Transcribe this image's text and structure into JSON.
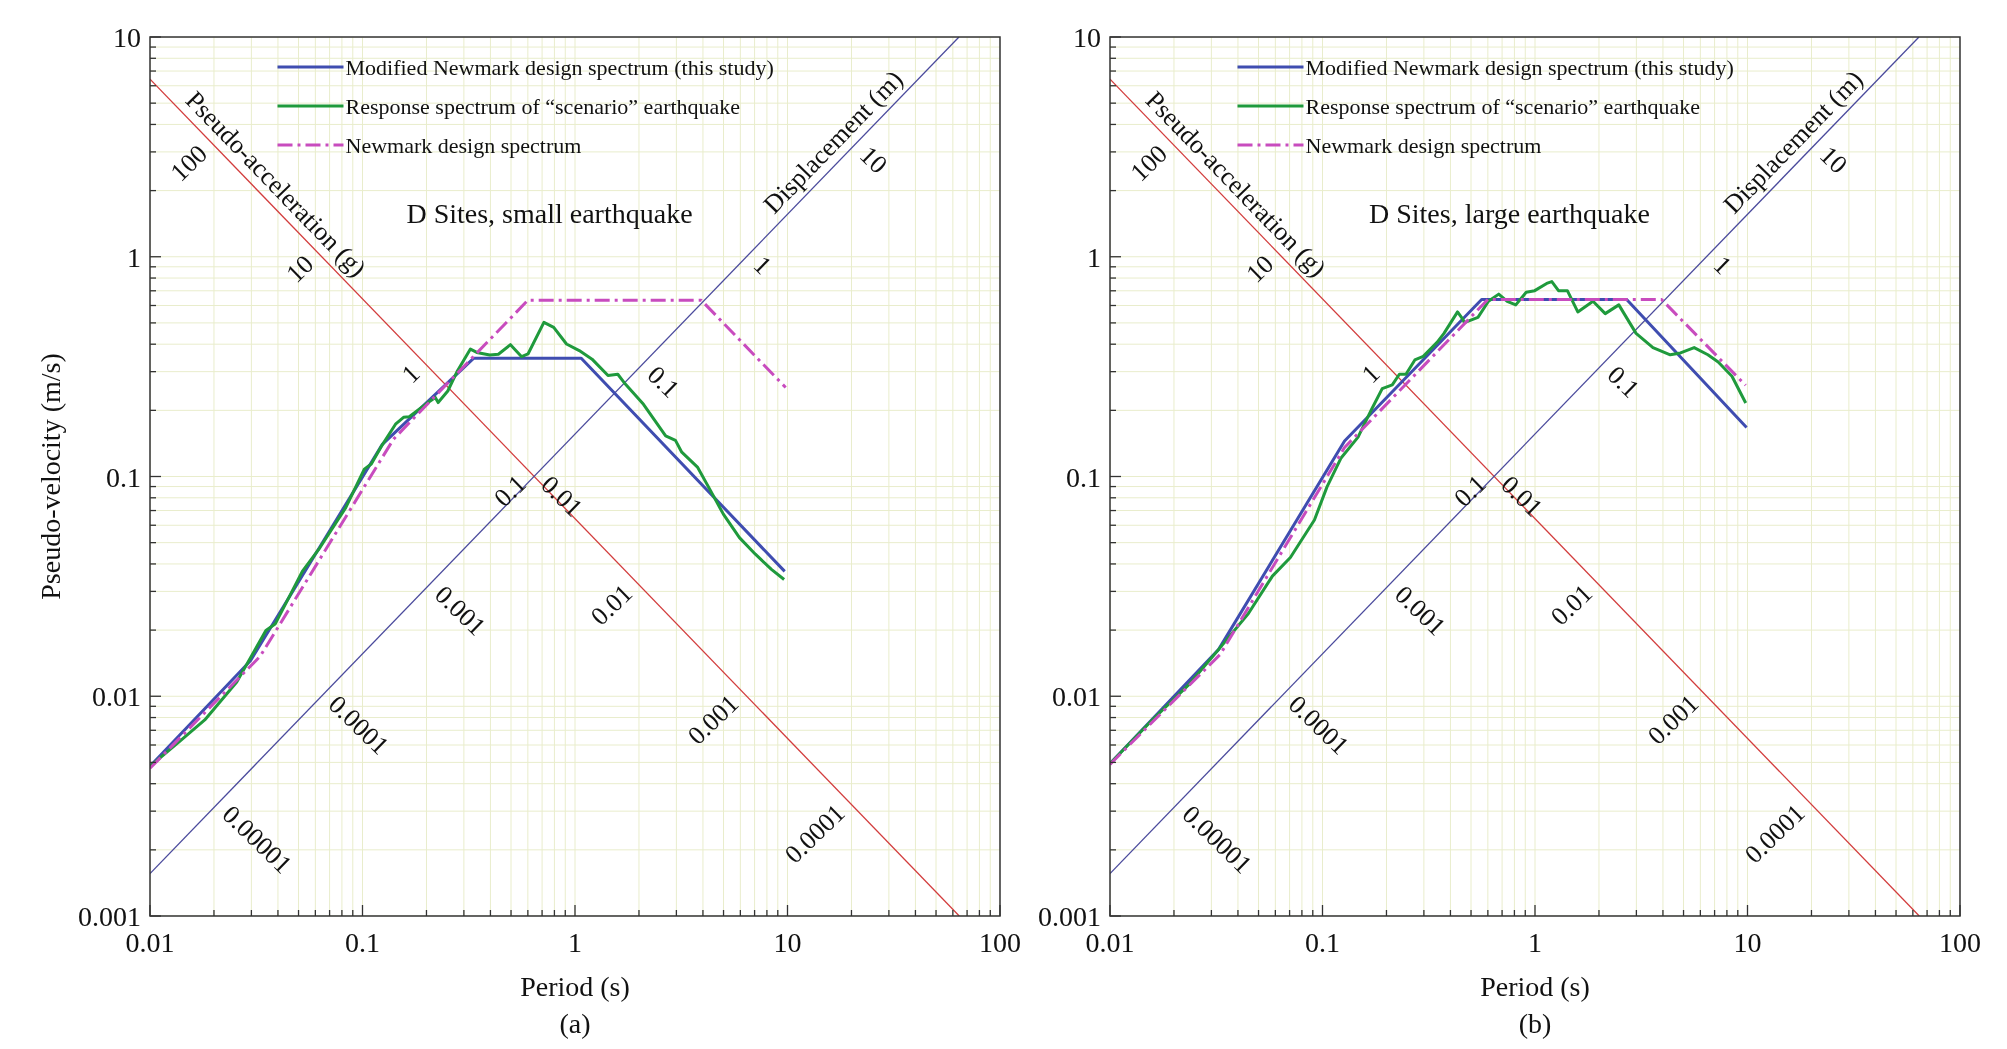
{
  "chart_data": [
    {
      "type": "line",
      "title": "D Sites, small earthquake",
      "xlabel": "Period (s)",
      "ylabel": "Pseudo-velocity (m/s)",
      "log": "xy",
      "grid": true,
      "legend": "top",
      "xlim": [
        0.01,
        100
      ],
      "ylim": [
        0.001,
        10
      ],
      "xticks": [
        0.01,
        {
          "value": 0.02,
          "label": null
        },
        {
          "value": 0.03,
          "label": null
        },
        {
          "value": 0.04,
          "label": null
        },
        {
          "value": 0.05,
          "label": null
        },
        {
          "value": 0.06,
          "label": null
        },
        {
          "value": 0.07,
          "label": null
        },
        {
          "value": 0.08,
          "label": null
        },
        {
          "value": 0.09,
          "label": null
        },
        0.1,
        {
          "value": 0.2,
          "label": null
        },
        {
          "value": 0.3,
          "label": null
        },
        {
          "value": 0.4,
          "label": null
        },
        {
          "value": 0.5,
          "label": null
        },
        {
          "value": 0.6,
          "label": null
        },
        {
          "value": 0.7,
          "label": null
        },
        {
          "value": 0.8,
          "label": null
        },
        {
          "value": 0.9,
          "label": null
        },
        1,
        {
          "value": 2,
          "label": null
        },
        {
          "value": 3,
          "label": null
        },
        {
          "value": 4,
          "label": null
        },
        {
          "value": 5,
          "label": null
        },
        {
          "value": 6,
          "label": null
        },
        {
          "value": 7,
          "label": null
        },
        {
          "value": 8,
          "label": null
        },
        {
          "value": 9,
          "label": null
        },
        10,
        {
          "value": 20,
          "label": null
        },
        {
          "value": 30,
          "label": null
        },
        {
          "value": 40,
          "label": null
        },
        {
          "value": 50,
          "label": null
        },
        {
          "value": 60,
          "label": null
        },
        {
          "value": 70,
          "label": null
        },
        {
          "value": 80,
          "label": null
        },
        {
          "value": 90,
          "label": null
        },
        100
      ],
      "yticks": [
        0.001,
        {
          "value": 0.002,
          "label": null
        },
        {
          "value": 0.003,
          "label": null
        },
        {
          "value": 0.004,
          "label": null
        },
        {
          "value": 0.005,
          "label": null
        },
        {
          "value": 0.006,
          "label": null
        },
        {
          "value": 0.007,
          "label": null
        },
        {
          "value": 0.008,
          "label": null
        },
        {
          "value": 0.009,
          "label": null
        },
        0.01,
        {
          "value": 0.02,
          "label": null
        },
        {
          "value": 0.03,
          "label": null
        },
        {
          "value": 0.04,
          "label": null
        },
        {
          "value": 0.05,
          "label": null
        },
        {
          "value": 0.06,
          "label": null
        },
        {
          "value": 0.07,
          "label": null
        },
        {
          "value": 0.08,
          "label": null
        },
        {
          "value": 0.09,
          "label": null
        },
        0.1,
        {
          "value": 0.2,
          "label": null
        },
        {
          "value": 0.3,
          "label": null
        },
        {
          "value": 0.4,
          "label": null
        },
        {
          "value": 0.5,
          "label": null
        },
        {
          "value": 0.6,
          "label": null
        },
        {
          "value": 0.7,
          "label": null
        },
        {
          "value": 0.8,
          "label": null
        },
        {
          "value": 0.9,
          "label": null
        },
        1,
        {
          "value": 2,
          "label": null
        },
        {
          "value": 3,
          "label": null
        },
        {
          "value": 4,
          "label": null
        },
        {
          "value": 5,
          "label": null
        },
        {
          "value": 6,
          "label": null
        },
        {
          "value": 7,
          "label": null
        },
        {
          "value": 8,
          "label": null
        },
        {
          "value": 9,
          "label": null
        },
        10
      ],
      "series": [
        {
          "color": "#d23c3c",
          "x": [
            0.01,
            64.3
          ],
          "values": [
            6.43,
            0.001
          ]
        },
        {
          "color": "#4a4a9c",
          "x": [
            0.01,
            64.1
          ],
          "values": [
            0.00156,
            10
          ]
        },
        {
          "name": "Modified Newmark design spectrum (this study)",
          "color": "#3f4db0",
          "x": [
            0.01,
            0.0297,
            0.124,
            0.333,
            1.07,
            9.7
          ],
          "values": [
            0.0048,
            0.0145,
            0.14,
            0.345,
            0.345,
            0.037
          ]
        },
        {
          "name": "Response spectrum of “scenario” earthquake",
          "color": "#1f9a3c",
          "x": [
            0.01,
            0.0137,
            0.0181,
            0.0256,
            0.0351,
            0.0388,
            0.0521,
            0.0631,
            0.0834,
            0.102,
            0.11,
            0.122,
            0.143,
            0.156,
            0.166,
            0.198,
            0.22,
            0.227,
            0.252,
            0.28,
            0.322,
            0.345,
            0.397,
            0.436,
            0.497,
            0.561,
            0.601,
            0.714,
            0.794,
            0.912,
            1.047,
            1.203,
            1.43,
            1.59,
            1.7,
            2.1,
            2.67,
            2.97,
            3.18,
            3.78,
            4.35,
            4.99,
            5.94,
            7.06,
            8.4,
            9.64
          ],
          "values": [
            0.0048,
            0.0062,
            0.0078,
            0.0116,
            0.0199,
            0.0213,
            0.037,
            0.0475,
            0.0722,
            0.108,
            0.114,
            0.136,
            0.173,
            0.186,
            0.187,
            0.213,
            0.229,
            0.217,
            0.245,
            0.303,
            0.38,
            0.367,
            0.357,
            0.36,
            0.398,
            0.351,
            0.361,
            0.503,
            0.477,
            0.401,
            0.374,
            0.342,
            0.288,
            0.292,
            0.268,
            0.213,
            0.153,
            0.146,
            0.129,
            0.11,
            0.086,
            0.0674,
            0.0527,
            0.0443,
            0.0378,
            0.034
          ]
        },
        {
          "name": "Newmark design spectrum",
          "color": "#c84cbe",
          "line_style": "dashdot",
          "x": [
            0.01,
            0.033,
            0.14,
            0.6,
            3.93,
            9.8
          ],
          "values": [
            0.0047,
            0.0152,
            0.148,
            0.634,
            0.634,
            0.254
          ]
        }
      ],
      "annotations": [
        "Pseudo-acceleration (g)",
        "Displacement (m)",
        {
          "text": "100",
          "x": 0.0203,
          "y": 3.17
        },
        {
          "text": "10",
          "x": 0.0642,
          "y": 1.0
        },
        {
          "text": "1",
          "x": 0.203,
          "y": 0.317
        },
        {
          "text": "0.1",
          "x": 0.642,
          "y": 0.1
        },
        {
          "text": "0.01",
          "x": 2.03,
          "y": 0.0317
        },
        {
          "text": "0.001",
          "x": 6.42,
          "y": 0.01
        },
        {
          "text": "0.0001",
          "x": 20.3,
          "y": 0.00317
        },
        {
          "text": "10",
          "x": 20.07,
          "y": 3.13
        },
        {
          "text": "1",
          "x": 6.35,
          "y": 0.99
        },
        {
          "text": "0.1",
          "x": 2.007,
          "y": 0.313
        },
        {
          "text": "0.01",
          "x": 0.635,
          "y": 0.099
        },
        {
          "text": "0.001",
          "x": 0.2007,
          "y": 0.0313
        },
        {
          "text": "0.0001",
          "x": 0.0635,
          "y": 0.0099
        },
        {
          "text": "0.00001",
          "x": 0.02007,
          "y": 0.00313
        },
        "(a)"
      ]
    },
    {
      "type": "line",
      "title": "D Sites, large earthquake",
      "xlabel": "Period (s)",
      "log": "xy",
      "grid": true,
      "legend": "top",
      "xlim": [
        0.01,
        100
      ],
      "ylim": [
        0.001,
        10
      ],
      "xticks": [
        0.01,
        {
          "value": 0.02,
          "label": null
        },
        {
          "value": 0.03,
          "label": null
        },
        {
          "value": 0.04,
          "label": null
        },
        {
          "value": 0.05,
          "label": null
        },
        {
          "value": 0.06,
          "label": null
        },
        {
          "value": 0.07,
          "label": null
        },
        {
          "value": 0.08,
          "label": null
        },
        {
          "value": 0.09,
          "label": null
        },
        0.1,
        {
          "value": 0.2,
          "label": null
        },
        {
          "value": 0.3,
          "label": null
        },
        {
          "value": 0.4,
          "label": null
        },
        {
          "value": 0.5,
          "label": null
        },
        {
          "value": 0.6,
          "label": null
        },
        {
          "value": 0.7,
          "label": null
        },
        {
          "value": 0.8,
          "label": null
        },
        {
          "value": 0.9,
          "label": null
        },
        1,
        {
          "value": 2,
          "label": null
        },
        {
          "value": 3,
          "label": null
        },
        {
          "value": 4,
          "label": null
        },
        {
          "value": 5,
          "label": null
        },
        {
          "value": 6,
          "label": null
        },
        {
          "value": 7,
          "label": null
        },
        {
          "value": 8,
          "label": null
        },
        {
          "value": 9,
          "label": null
        },
        10,
        {
          "value": 20,
          "label": null
        },
        {
          "value": 30,
          "label": null
        },
        {
          "value": 40,
          "label": null
        },
        {
          "value": 50,
          "label": null
        },
        {
          "value": 60,
          "label": null
        },
        {
          "value": 70,
          "label": null
        },
        {
          "value": 80,
          "label": null
        },
        {
          "value": 90,
          "label": null
        },
        100
      ],
      "yticks": [
        0.001,
        {
          "value": 0.002,
          "label": null
        },
        {
          "value": 0.003,
          "label": null
        },
        {
          "value": 0.004,
          "label": null
        },
        {
          "value": 0.005,
          "label": null
        },
        {
          "value": 0.006,
          "label": null
        },
        {
          "value": 0.007,
          "label": null
        },
        {
          "value": 0.008,
          "label": null
        },
        {
          "value": 0.009,
          "label": null
        },
        0.01,
        {
          "value": 0.02,
          "label": null
        },
        {
          "value": 0.03,
          "label": null
        },
        {
          "value": 0.04,
          "label": null
        },
        {
          "value": 0.05,
          "label": null
        },
        {
          "value": 0.06,
          "label": null
        },
        {
          "value": 0.07,
          "label": null
        },
        {
          "value": 0.08,
          "label": null
        },
        {
          "value": 0.09,
          "label": null
        },
        0.1,
        {
          "value": 0.2,
          "label": null
        },
        {
          "value": 0.3,
          "label": null
        },
        {
          "value": 0.4,
          "label": null
        },
        {
          "value": 0.5,
          "label": null
        },
        {
          "value": 0.6,
          "label": null
        },
        {
          "value": 0.7,
          "label": null
        },
        {
          "value": 0.8,
          "label": null
        },
        {
          "value": 0.9,
          "label": null
        },
        1,
        {
          "value": 2,
          "label": null
        },
        {
          "value": 3,
          "label": null
        },
        {
          "value": 4,
          "label": null
        },
        {
          "value": 5,
          "label": null
        },
        {
          "value": 6,
          "label": null
        },
        {
          "value": 7,
          "label": null
        },
        {
          "value": 8,
          "label": null
        },
        {
          "value": 9,
          "label": null
        },
        10
      ],
      "series": [
        {
          "color": "#d23c3c",
          "x": [
            0.01,
            64.3
          ],
          "values": [
            6.43,
            0.001
          ]
        },
        {
          "color": "#4a4a9c",
          "x": [
            0.01,
            64.1
          ],
          "values": [
            0.00156,
            10
          ]
        },
        {
          "name": "Modified Newmark design spectrum (this study)",
          "color": "#3f4db0",
          "x": [
            0.01,
            0.0324,
            0.127,
            0.561,
            2.7,
            9.9
          ],
          "values": [
            0.00494,
            0.0163,
            0.145,
            0.639,
            0.639,
            0.167
          ]
        },
        {
          "name": "Response spectrum of “scenario” earthquake",
          "color": "#1f9a3c",
          "x": [
            0.01,
            0.0158,
            0.0233,
            0.0324,
            0.0448,
            0.0581,
            0.0706,
            0.0916,
            0.105,
            0.122,
            0.147,
            0.171,
            0.191,
            0.213,
            0.23,
            0.247,
            0.272,
            0.298,
            0.346,
            0.373,
            0.432,
            0.457,
            0.465,
            0.539,
            0.604,
            0.675,
            0.74,
            0.812,
            0.909,
            0.997,
            1.135,
            1.2,
            1.29,
            1.42,
            1.59,
            1.875,
            2.14,
            2.48,
            2.99,
            3.59,
            4.33,
            4.84,
            5.61,
            6.51,
            7.28,
            8.45,
            9.81
          ],
          "values": [
            0.00494,
            0.0078,
            0.0112,
            0.0163,
            0.0238,
            0.0352,
            0.0428,
            0.0634,
            0.0897,
            0.121,
            0.151,
            0.204,
            0.251,
            0.261,
            0.292,
            0.292,
            0.339,
            0.352,
            0.408,
            0.448,
            0.561,
            0.52,
            0.501,
            0.53,
            0.627,
            0.676,
            0.627,
            0.604,
            0.689,
            0.701,
            0.756,
            0.771,
            0.701,
            0.701,
            0.561,
            0.627,
            0.551,
            0.604,
            0.448,
            0.386,
            0.358,
            0.365,
            0.386,
            0.358,
            0.332,
            0.286,
            0.216
          ]
        },
        {
          "name": "Newmark design spectrum",
          "color": "#c84cbe",
          "line_style": "dashdot",
          "x": [
            0.01,
            0.033,
            0.127,
            0.6,
            3.94,
            9.8
          ],
          "values": [
            0.0049,
            0.0155,
            0.1355,
            0.639,
            0.639,
            0.26
          ]
        }
      ],
      "annotations": [
        "Pseudo-acceleration (g)",
        "Displacement (m)",
        {
          "text": "100",
          "x": 0.0203,
          "y": 3.17
        },
        {
          "text": "10",
          "x": 0.0642,
          "y": 1.0
        },
        {
          "text": "1",
          "x": 0.203,
          "y": 0.317
        },
        {
          "text": "0.1",
          "x": 0.642,
          "y": 0.1
        },
        {
          "text": "0.01",
          "x": 2.03,
          "y": 0.0317
        },
        {
          "text": "0.001",
          "x": 6.42,
          "y": 0.01
        },
        {
          "text": "0.0001",
          "x": 20.3,
          "y": 0.00317
        },
        {
          "text": "10",
          "x": 20.07,
          "y": 3.13
        },
        {
          "text": "1",
          "x": 6.35,
          "y": 0.99
        },
        {
          "text": "0.1",
          "x": 2.007,
          "y": 0.313
        },
        {
          "text": "0.01",
          "x": 0.635,
          "y": 0.099
        },
        {
          "text": "0.001",
          "x": 0.2007,
          "y": 0.0313
        },
        {
          "text": "0.0001",
          "x": 0.0635,
          "y": 0.0099
        },
        {
          "text": "0.00001",
          "x": 0.02007,
          "y": 0.00313
        },
        "(b)"
      ]
    }
  ]
}
